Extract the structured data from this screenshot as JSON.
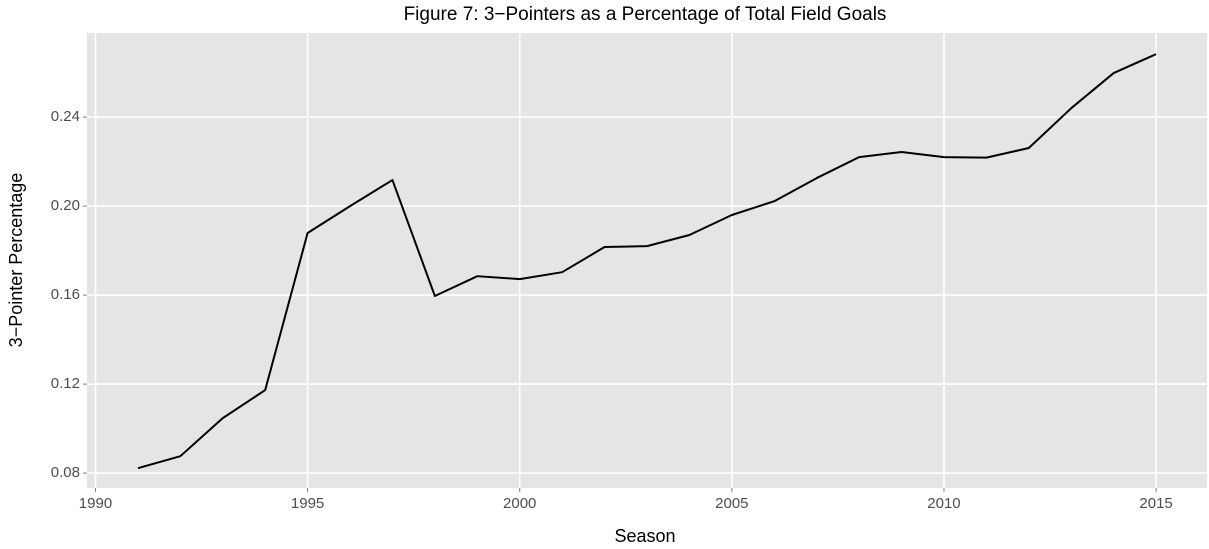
{
  "chart_data": {
    "type": "line",
    "title": "Figure 7: 3−Pointers as a Percentage of Total Field Goals",
    "x_label": "Season",
    "y_label": "3−Pointer Percentage",
    "x": [
      1991,
      1992,
      1993,
      1994,
      1995,
      1996,
      1997,
      1998,
      1999,
      2000,
      2001,
      2002,
      2003,
      2004,
      2005,
      2006,
      2007,
      2008,
      2009,
      2010,
      2011,
      2012,
      2013,
      2014,
      2015
    ],
    "series": [
      {
        "color": "#000000",
        "values": [
          0.0822,
          0.0876,
          0.1047,
          0.1173,
          0.1879,
          0.2,
          0.2117,
          0.1596,
          0.1685,
          0.1672,
          0.1703,
          0.1816,
          0.182,
          0.187,
          0.196,
          0.2022,
          0.2126,
          0.222,
          0.2243,
          0.222,
          0.2218,
          0.2261,
          0.244,
          0.2598,
          0.2683
        ]
      }
    ],
    "xlim": [
      1989.8,
      2016.2
    ],
    "xticks": [
      1990,
      1995,
      2000,
      2005,
      2010,
      2015
    ],
    "ylim": [
      0.0733,
      0.2778
    ],
    "yticks": [
      0.08,
      0.12,
      0.16,
      {
        "value": 0.2,
        "label": "0.20"
      },
      0.24
    ],
    "grid": true
  }
}
